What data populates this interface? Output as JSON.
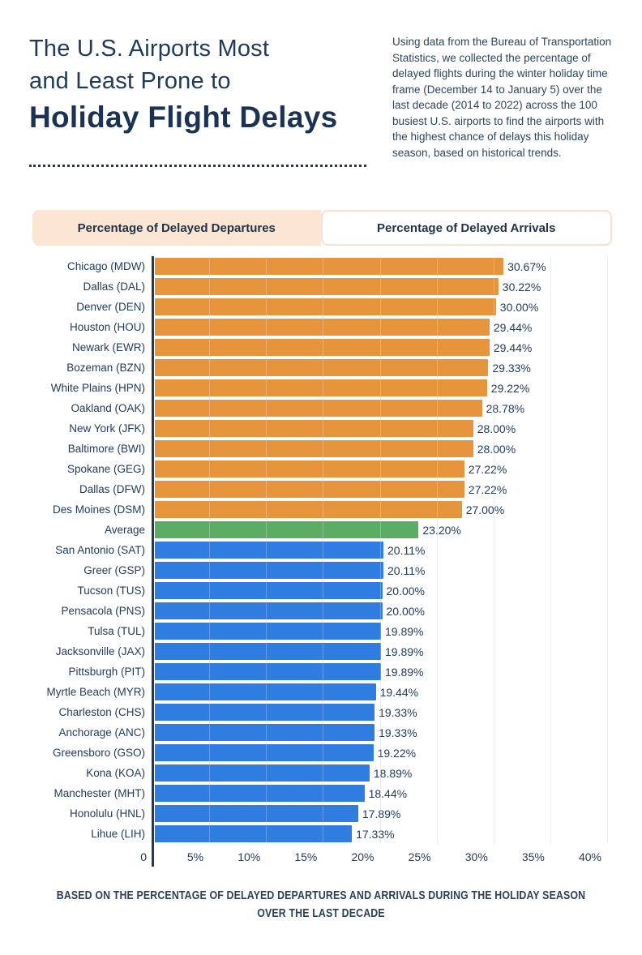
{
  "header": {
    "title_line1": "The U.S. Airports Most",
    "title_line2": "and Least Prone to",
    "title_line3": "Holiday Flight Delays",
    "description": "Using data from the Bureau of Transportation Statistics, we collected the percentage of delayed flights during the winter holiday time frame (December 14 to January 5) over the last decade (2014 to 2022) across the 100 busiest U.S. airports to find the airports with the highest chance of delays this holiday season, based on historical trends."
  },
  "tabs": [
    {
      "label": "Percentage of Delayed Departures",
      "active": false
    },
    {
      "label": "Percentage of Delayed Arrivals",
      "active": true
    }
  ],
  "chart_data": {
    "type": "bar",
    "orientation": "horizontal",
    "title": "",
    "xlabel": "",
    "ylabel": "",
    "xlim": [
      0,
      40
    ],
    "grid": true,
    "colors": {
      "most": "#e6953c",
      "average": "#5bad64",
      "least": "#2f7de0"
    },
    "x_ticks": [
      {
        "label": "0",
        "value": 0
      },
      {
        "label": "5%",
        "value": 5
      },
      {
        "label": "10%",
        "value": 10
      },
      {
        "label": "15%",
        "value": 15
      },
      {
        "label": "20%",
        "value": 20
      },
      {
        "label": "25%",
        "value": 25
      },
      {
        "label": "30%",
        "value": 30
      },
      {
        "label": "35%",
        "value": 35
      },
      {
        "label": "40%",
        "value": 40
      }
    ],
    "rows": [
      {
        "label": "Chicago (MDW)",
        "value": 30.67,
        "display": "30.67%",
        "group": "most"
      },
      {
        "label": "Dallas (DAL)",
        "value": 30.22,
        "display": "30.22%",
        "group": "most"
      },
      {
        "label": "Denver (DEN)",
        "value": 30.0,
        "display": "30.00%",
        "group": "most"
      },
      {
        "label": "Houston (HOU)",
        "value": 29.44,
        "display": "29.44%",
        "group": "most"
      },
      {
        "label": "Newark (EWR)",
        "value": 29.44,
        "display": "29.44%",
        "group": "most"
      },
      {
        "label": "Bozeman (BZN)",
        "value": 29.33,
        "display": "29.33%",
        "group": "most"
      },
      {
        "label": "White Plains (HPN)",
        "value": 29.22,
        "display": "29.22%",
        "group": "most"
      },
      {
        "label": "Oakland (OAK)",
        "value": 28.78,
        "display": "28.78%",
        "group": "most"
      },
      {
        "label": "New York (JFK)",
        "value": 28.0,
        "display": "28.00%",
        "group": "most"
      },
      {
        "label": "Baltimore (BWI)",
        "value": 28.0,
        "display": "28.00%",
        "group": "most"
      },
      {
        "label": "Spokane (GEG)",
        "value": 27.22,
        "display": "27.22%",
        "group": "most"
      },
      {
        "label": "Dallas (DFW)",
        "value": 27.22,
        "display": "27.22%",
        "group": "most"
      },
      {
        "label": "Des Moines (DSM)",
        "value": 27.0,
        "display": "27.00%",
        "group": "most"
      },
      {
        "label": "Average",
        "value": 23.2,
        "display": "23.20%",
        "group": "average"
      },
      {
        "label": "San Antonio (SAT)",
        "value": 20.11,
        "display": "20.11%",
        "group": "least"
      },
      {
        "label": "Greer (GSP)",
        "value": 20.11,
        "display": "20.11%",
        "group": "least"
      },
      {
        "label": "Tucson (TUS)",
        "value": 20.0,
        "display": "20.00%",
        "group": "least"
      },
      {
        "label": "Pensacola (PNS)",
        "value": 20.0,
        "display": "20.00%",
        "group": "least"
      },
      {
        "label": "Tulsa (TUL)",
        "value": 19.89,
        "display": "19.89%",
        "group": "least"
      },
      {
        "label": "Jacksonville (JAX)",
        "value": 19.89,
        "display": "19.89%",
        "group": "least"
      },
      {
        "label": "Pittsburgh (PIT)",
        "value": 19.89,
        "display": "19.89%",
        "group": "least"
      },
      {
        "label": "Myrtle Beach (MYR)",
        "value": 19.44,
        "display": "19.44%",
        "group": "least"
      },
      {
        "label": "Charleston (CHS)",
        "value": 19.33,
        "display": "19.33%",
        "group": "least"
      },
      {
        "label": "Anchorage (ANC)",
        "value": 19.33,
        "display": "19.33%",
        "group": "least"
      },
      {
        "label": "Greensboro (GSO)",
        "value": 19.22,
        "display": "19.22%",
        "group": "least"
      },
      {
        "label": "Kona (KOA)",
        "value": 18.89,
        "display": "18.89%",
        "group": "least"
      },
      {
        "label": "Manchester (MHT)",
        "value": 18.44,
        "display": "18.44%",
        "group": "least"
      },
      {
        "label": "Honolulu (HNL)",
        "value": 17.89,
        "display": "17.89%",
        "group": "least"
      },
      {
        "label": "Lihue (LIH)",
        "value": 17.33,
        "display": "17.33%",
        "group": "least"
      }
    ]
  },
  "footer": {
    "note_line1": "BASED ON THE PERCENTAGE OF DELAYED DEPARTURES AND ARRIVALS DURING THE HOLIDAY SEASON",
    "note_line2": "OVER THE LAST DECADE"
  }
}
